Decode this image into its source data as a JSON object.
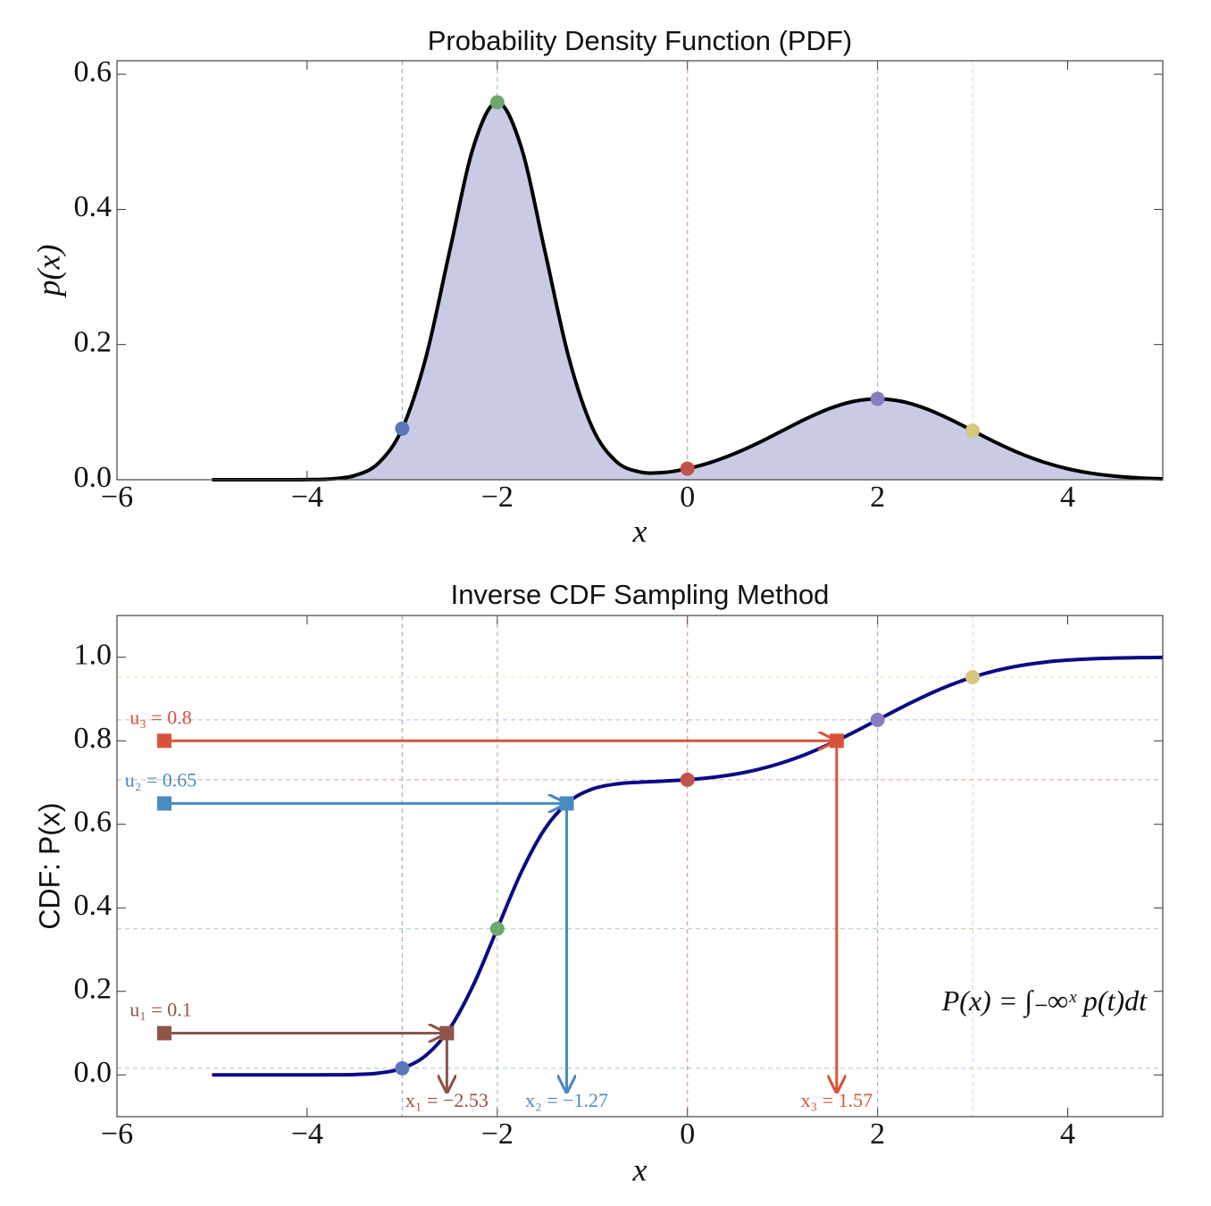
{
  "chart_data": [
    {
      "type": "area",
      "title": "Probability Density Function (PDF)",
      "x_label": "x",
      "y_label": "p(x)",
      "x": [
        -5,
        -4.75,
        -4.5,
        -4.25,
        -4,
        -3.75,
        -3.5,
        -3.25,
        -3,
        -2.75,
        -2.5,
        -2.25,
        -2,
        -1.75,
        -1.5,
        -1.25,
        -1,
        -0.75,
        -0.5,
        -0.25,
        0,
        0.25,
        0.5,
        0.75,
        1,
        1.25,
        1.5,
        1.75,
        2,
        2.25,
        2.5,
        2.75,
        3,
        3.25,
        3.5,
        3.75,
        4,
        4.25,
        4.5,
        4.75,
        5
      ],
      "values": [
        0,
        0,
        0,
        0,
        0.0002,
        0.0012,
        0.0062,
        0.0245,
        0.0756,
        0.1813,
        0.3388,
        0.4929,
        0.5585,
        0.493,
        0.339,
        0.1819,
        0.0769,
        0.0272,
        0.0115,
        0.0107,
        0.0164,
        0.0259,
        0.0389,
        0.0548,
        0.0726,
        0.0903,
        0.1056,
        0.116,
        0.1197,
        0.116,
        0.1056,
        0.0903,
        0.0726,
        0.0548,
        0.0389,
        0.0259,
        0.0162,
        0.0095,
        0.0053,
        0.0027,
        0.0013
      ],
      "color": "#000000",
      "fill": "#c9cbe4",
      "points": {
        "x": [
          -3,
          -2,
          0,
          2,
          3
        ],
        "values": [
          0.0756,
          0.5585,
          0.0164,
          0.1197,
          0.0726
        ],
        "colors": [
          "#5b77bb",
          "#6aaa6a",
          "#c4504d",
          "#8a7cc0",
          "#d6c67e"
        ]
      },
      "xlim": [
        -6,
        5
      ],
      "xticks": [
        {
          "value": -6,
          "label": "−6"
        },
        {
          "value": -4,
          "label": "−4"
        },
        {
          "value": -2,
          "label": "−2"
        },
        0,
        2,
        4
      ],
      "ylim": [
        0,
        0.62
      ],
      "yticks": [
        {
          "value": 0,
          "label": "0.0"
        },
        0.2,
        0.4,
        0.6
      ]
    },
    {
      "type": "line",
      "title": "Inverse CDF Sampling Method",
      "x_label": "x",
      "y_label": "CDF: P(x)",
      "x": [
        -5,
        -4.75,
        -4.5,
        -4.25,
        -4,
        -3.75,
        -3.5,
        -3.25,
        -3,
        -2.75,
        -2.5,
        -2.25,
        -2,
        -1.75,
        -1.5,
        -1.25,
        -1,
        -0.75,
        -0.5,
        -0.25,
        0,
        0.25,
        0.5,
        0.75,
        1,
        1.25,
        1.5,
        1.75,
        2,
        2.25,
        2.5,
        2.75,
        3,
        3.25,
        3.5,
        3.75,
        4,
        4.25,
        4.5,
        4.75,
        5
      ],
      "values": [
        0,
        0,
        0,
        0,
        0,
        0.0002,
        0.0009,
        0.0043,
        0.0159,
        0.0468,
        0.1111,
        0.216,
        0.35,
        0.4841,
        0.589,
        0.6534,
        0.6845,
        0.6965,
        0.7009,
        0.7035,
        0.7068,
        0.712,
        0.72,
        0.7317,
        0.7476,
        0.768,
        0.7926,
        0.8204,
        0.85,
        0.8796,
        0.9074,
        0.932,
        0.9524,
        0.9683,
        0.98,
        0.988,
        0.9932,
        0.9963,
        0.9981,
        0.9991,
        0.9996
      ],
      "color": "#0b0b86",
      "points": {
        "x": [
          -3,
          -2,
          0,
          2,
          3
        ],
        "values": [
          0.0159,
          0.35,
          0.7068,
          0.85,
          0.9524
        ],
        "colors": [
          "#5b77bb",
          "#6aaa6a",
          "#c4504d",
          "#8a7cc0",
          "#d6c67e"
        ]
      },
      "samples": [
        {
          "u": 0.1,
          "x": -2.53,
          "u_label": "u₁ = 0.1",
          "x_label": "x₁ = −2.53",
          "color": "#8c5548"
        },
        {
          "u": 0.65,
          "x": -1.27,
          "u_label": "u₂ = 0.65",
          "x_label": "x₂ = −1.27",
          "color": "#4a8ac2"
        },
        {
          "u": 0.8,
          "x": 1.57,
          "u_label": "u₃ = 0.8",
          "x_label": "x₃ = 1.57",
          "color": "#d9533a"
        }
      ],
      "formula": "P(x) = ∫₋∞ˣ p(t)dt",
      "xlim": [
        -6,
        5
      ],
      "xticks": [
        {
          "value": -6,
          "label": "−6"
        },
        {
          "value": -4,
          "label": "−4"
        },
        {
          "value": -2,
          "label": "−2"
        },
        0,
        2,
        4
      ],
      "ylim": [
        -0.1,
        1.1
      ],
      "yticks": [
        {
          "value": 0,
          "label": "0.0"
        },
        0.2,
        0.4,
        0.6,
        0.8,
        {
          "value": 1,
          "label": "1.0"
        }
      ]
    }
  ]
}
